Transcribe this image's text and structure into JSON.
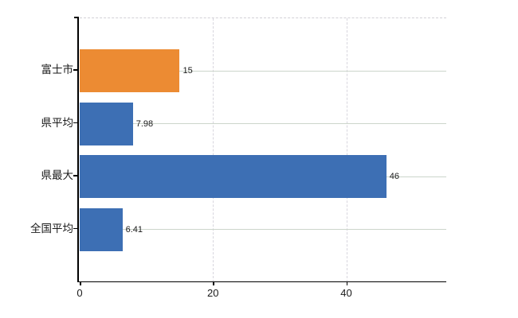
{
  "chart_data": {
    "type": "bar",
    "orientation": "horizontal",
    "title": "",
    "xlabel": "",
    "ylabel": "",
    "categories": [
      "富士市",
      "県平均",
      "県最大",
      "全国平均"
    ],
    "values": [
      15,
      7.98,
      46,
      6.41
    ],
    "value_labels": [
      "15",
      "7.98",
      "46",
      "6.41"
    ],
    "bar_colors": [
      "#EC8B33",
      "#3D6FB4",
      "#3D6FB4",
      "#3D6FB4"
    ],
    "xlim": [
      0,
      55
    ],
    "x_ticks": [
      0,
      20,
      40
    ],
    "x_tick_labels": [
      "0",
      "20",
      "40"
    ],
    "grid": true,
    "legend": false,
    "highlighted_category": "富士市"
  },
  "colors": {
    "highlight_bar": "#EC8B33",
    "default_bar": "#3D6FB4",
    "axis": "#000000",
    "h_gridline": "#ccd5cb",
    "v_gridline": "#d8d6de",
    "top_border": "#d2d0d6",
    "text": "#1a1a1a",
    "background": "#ffffff"
  }
}
